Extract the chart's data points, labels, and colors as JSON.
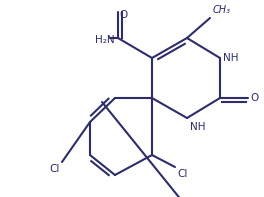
{
  "bg_color": "#ffffff",
  "line_color": "#2d2d6b",
  "line_width": 1.5,
  "figsize": [
    2.64,
    1.97
  ],
  "dpi": 100,
  "xlim": [
    0,
    264
  ],
  "ylim": [
    0,
    197
  ]
}
